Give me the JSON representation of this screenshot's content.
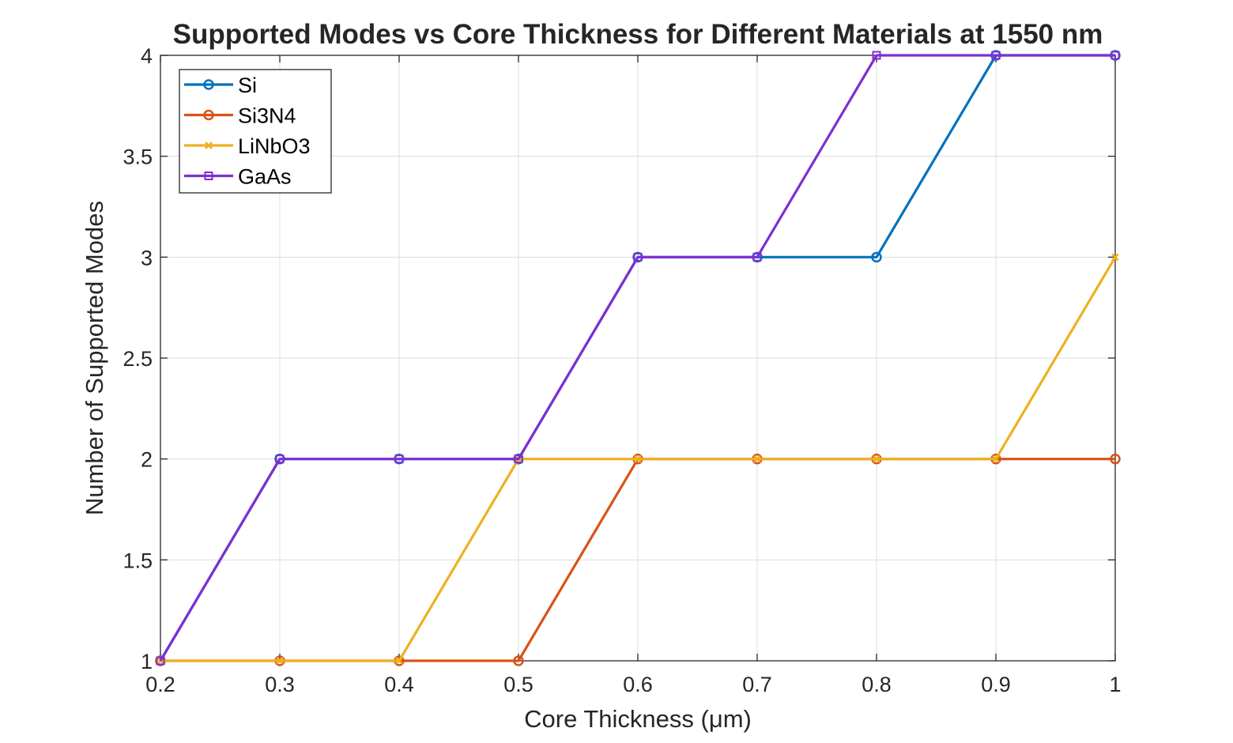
{
  "chart_data": {
    "type": "line",
    "title": "Supported Modes vs Core Thickness for Different Materials at 1550 nm",
    "xlabel": "Core Thickness (μm)",
    "ylabel": "Number of Supported Modes",
    "x": [
      0.2,
      0.3,
      0.4,
      0.5,
      0.6,
      0.7,
      0.8,
      0.9,
      1.0
    ],
    "xlim": [
      0.2,
      1.0
    ],
    "ylim": [
      1,
      4
    ],
    "xticks": [
      0.2,
      0.3,
      0.4,
      0.5,
      0.6,
      0.7,
      0.8,
      0.9,
      1.0
    ],
    "xtick_labels": [
      "0.2",
      "0.3",
      "0.4",
      "0.5",
      "0.6",
      "0.7",
      "0.8",
      "0.9",
      "1"
    ],
    "yticks": [
      1,
      1.5,
      2,
      2.5,
      3,
      3.5,
      4
    ],
    "ytick_labels": [
      "1",
      "1.5",
      "2",
      "2.5",
      "3",
      "3.5",
      "4"
    ],
    "grid": true,
    "legend_position": "top-left",
    "series": [
      {
        "name": "Si",
        "color": "#0072BD",
        "marker": "circle",
        "values": [
          1,
          2,
          2,
          2,
          3,
          3,
          3,
          4,
          4
        ]
      },
      {
        "name": "Si3N4",
        "color": "#D95319",
        "marker": "circle",
        "values": [
          1,
          1,
          1,
          1,
          2,
          2,
          2,
          2,
          2
        ]
      },
      {
        "name": "LiNbO3",
        "color": "#EDB120",
        "marker": "x",
        "values": [
          1,
          1,
          1,
          2,
          2,
          2,
          2,
          2,
          3
        ]
      },
      {
        "name": "GaAs",
        "color": "#7E2FD2",
        "marker": "square",
        "values": [
          1,
          2,
          2,
          2,
          3,
          3,
          4,
          4,
          4
        ]
      }
    ]
  }
}
